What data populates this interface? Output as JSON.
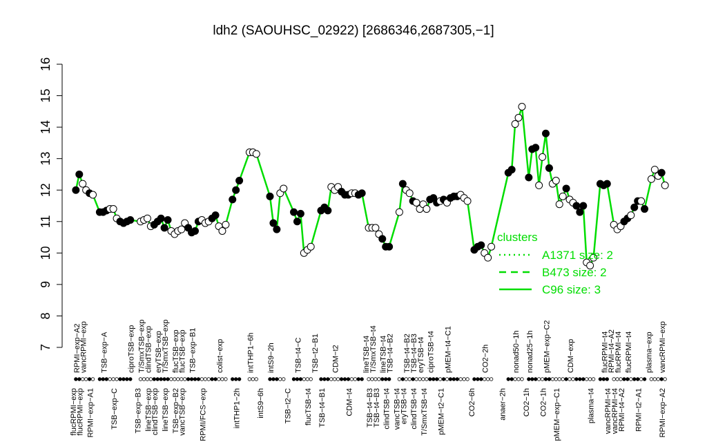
{
  "chart_data": {
    "type": "scatter",
    "title": "ldh2 (SAOUHSC_02922) [2686346,2687305,−1]",
    "xlim": [
      0,
      177
    ],
    "ylim": [
      7,
      16
    ],
    "yticks": [
      7,
      8,
      9,
      10,
      11,
      12,
      13,
      14,
      15,
      16
    ],
    "line_color": "#00dd00",
    "point_fill": "#000000",
    "x": [
      2,
      3,
      4,
      5,
      6,
      7,
      9,
      10,
      11,
      12,
      13,
      14,
      15,
      16,
      17,
      18,
      21,
      22,
      23,
      24,
      25,
      26,
      27,
      28,
      29,
      30,
      31,
      32,
      33,
      34,
      35,
      36,
      37,
      38,
      39,
      40,
      41,
      42,
      43,
      44,
      45,
      46,
      48,
      49,
      50,
      53,
      54,
      55,
      59,
      60,
      61,
      62,
      63,
      66,
      67,
      68,
      69,
      70,
      71,
      74,
      75,
      76,
      77,
      78,
      79,
      80,
      81,
      82,
      83,
      84,
      85,
      86,
      88,
      89,
      90,
      91,
      92,
      93,
      94,
      97,
      98,
      99,
      100,
      101,
      102,
      103,
      104,
      105,
      106,
      107,
      108,
      109,
      110,
      111,
      112,
      113,
      114,
      115,
      116,
      117,
      119,
      120,
      121,
      122,
      123,
      124,
      129,
      130,
      131,
      132,
      133,
      135,
      136,
      137,
      138,
      139,
      140,
      141,
      142,
      143,
      144,
      145,
      146,
      147,
      148,
      149,
      150,
      151,
      152,
      153,
      154,
      156,
      157,
      158,
      160,
      161,
      162,
      163,
      164,
      165,
      166,
      167,
      168,
      169,
      171,
      172,
      173,
      174,
      175
    ],
    "values": [
      12.0,
      12.5,
      12.2,
      12.0,
      11.9,
      11.85,
      11.3,
      11.3,
      11.35,
      11.4,
      11.4,
      11.1,
      11.0,
      10.95,
      11.0,
      11.05,
      11.0,
      11.05,
      11.1,
      10.85,
      10.9,
      11.0,
      11.1,
      10.8,
      11.05,
      10.7,
      10.6,
      10.7,
      10.75,
      10.95,
      10.8,
      10.65,
      10.7,
      11.0,
      11.05,
      10.95,
      11.0,
      11.1,
      11.2,
      10.85,
      10.7,
      10.9,
      11.7,
      12.0,
      12.3,
      13.2,
      13.2,
      13.15,
      11.8,
      10.95,
      10.75,
      11.9,
      12.05,
      11.3,
      11.0,
      11.25,
      10.0,
      10.1,
      10.2,
      11.35,
      11.45,
      11.35,
      12.1,
      12.0,
      12.1,
      11.95,
      11.85,
      11.85,
      11.9,
      11.9,
      11.85,
      11.9,
      10.8,
      10.8,
      10.8,
      10.6,
      10.45,
      10.2,
      10.2,
      11.3,
      12.2,
      12.0,
      11.9,
      11.65,
      11.6,
      11.4,
      11.55,
      11.4,
      11.7,
      11.75,
      11.6,
      11.65,
      11.7,
      11.6,
      11.75,
      11.8,
      11.8,
      11.85,
      11.75,
      11.65,
      10.1,
      10.2,
      10.25,
      10.0,
      9.85,
      10.2,
      12.55,
      12.65,
      14.1,
      14.3,
      14.65,
      12.4,
      13.3,
      13.35,
      12.15,
      13.05,
      13.8,
      12.7,
      12.2,
      12.3,
      11.55,
      11.8,
      12.05,
      11.7,
      11.6,
      11.5,
      11.3,
      11.5,
      9.7,
      9.6,
      9.85,
      12.2,
      12.15,
      12.2,
      10.9,
      10.75,
      10.85,
      11.0,
      11.1,
      11.2,
      11.45,
      11.65,
      11.65,
      11.4,
      12.35,
      12.65,
      12.45,
      12.55,
      12.15
    ],
    "filled": [
      1,
      1,
      0,
      0,
      1,
      0,
      1,
      1,
      1,
      0,
      0,
      0,
      1,
      1,
      1,
      1,
      0,
      0,
      0,
      0,
      1,
      1,
      1,
      1,
      1,
      0,
      0,
      0,
      0,
      0,
      1,
      1,
      1,
      1,
      0,
      0,
      0,
      1,
      1,
      0,
      0,
      0,
      1,
      1,
      1,
      0,
      0,
      0,
      1,
      1,
      1,
      0,
      0,
      1,
      1,
      1,
      0,
      0,
      0,
      1,
      1,
      1,
      0,
      0,
      0,
      1,
      1,
      1,
      0,
      0,
      1,
      1,
      0,
      0,
      0,
      0,
      1,
      1,
      1,
      0,
      1,
      0,
      0,
      1,
      0,
      0,
      0,
      0,
      1,
      1,
      1,
      0,
      1,
      0,
      1,
      1,
      1,
      0,
      0,
      0,
      1,
      1,
      1,
      0,
      0,
      0,
      1,
      1,
      0,
      0,
      0,
      1,
      1,
      1,
      0,
      0,
      1,
      1,
      0,
      0,
      0,
      0,
      1,
      0,
      0,
      1,
      1,
      1,
      0,
      0,
      0,
      1,
      1,
      1,
      0,
      0,
      0,
      1,
      1,
      0,
      1,
      1,
      0,
      1,
      0,
      0,
      0,
      1,
      0
    ],
    "labels_top": [
      {
        "text": "RPMI−exp−A2",
        "x": 3
      },
      {
        "text": "vancRPMI−exp",
        "x": 5
      },
      {
        "text": "TSB−exp−A",
        "x": 11
      },
      {
        "text": "ciproTSB−exp",
        "x": 19
      },
      {
        "text": "T/SmxTSB−exp",
        "x": 22
      },
      {
        "text": "clindTSB−exp",
        "x": 24
      },
      {
        "text": "eryTSB−exp",
        "x": 27
      },
      {
        "text": "T/SmxTSB−exp",
        "x": 29
      },
      {
        "text": "flucTSB−exp",
        "x": 32
      },
      {
        "text": "flucTSB−exp",
        "x": 34
      },
      {
        "text": "TSB−exp−B1",
        "x": 37
      },
      {
        "text": "colist−exp",
        "x": 45
      },
      {
        "text": "intTHP1−6h",
        "x": 54
      },
      {
        "text": "intS9−2h",
        "x": 60
      },
      {
        "text": "TSB−t4−C",
        "x": 68
      },
      {
        "text": "TSB−t2−B1",
        "x": 73
      },
      {
        "text": "CDM−t2",
        "x": 79
      },
      {
        "text": "lineTSB−t4",
        "x": 88
      },
      {
        "text": "T/SmxTSB−t4",
        "x": 90
      },
      {
        "text": "lineTSB−t4",
        "x": 93
      },
      {
        "text": "TSB−t4−B2",
        "x": 95
      },
      {
        "text": "TSB−t4−B2",
        "x": 100
      },
      {
        "text": "TSB−t4−B3",
        "x": 102
      },
      {
        "text": "eryTSB−t4",
        "x": 104
      },
      {
        "text": "ciproTSB−t4",
        "x": 107
      },
      {
        "text": "pMEM−t4−C1",
        "x": 112
      },
      {
        "text": "CO2−2h",
        "x": 123
      },
      {
        "text": "nonad50−1h",
        "x": 132
      },
      {
        "text": "nonad25−1h",
        "x": 136
      },
      {
        "text": "pMEM−exp−C2",
        "x": 141
      },
      {
        "text": "CDM−exp",
        "x": 148
      },
      {
        "text": "flucRPMI−t4",
        "x": 158
      },
      {
        "text": "RPMI−t4−A2",
        "x": 160
      },
      {
        "text": "flucRPMI−t4",
        "x": 162
      },
      {
        "text": "flucRPMI−t4",
        "x": 165
      },
      {
        "text": "plasma−exp",
        "x": 171
      },
      {
        "text": "vancRPMI−exp",
        "x": 175
      }
    ],
    "labels_bottom": [
      {
        "text": "flucRPMI−exp",
        "x": 2
      },
      {
        "text": "flucRPMI−exp",
        "x": 4
      },
      {
        "text": "RPMI−exp−A1",
        "x": 7
      },
      {
        "text": "TSB−exp−C",
        "x": 14
      },
      {
        "text": "TSB−exp−B3",
        "x": 21
      },
      {
        "text": "lineTSB−exp",
        "x": 24
      },
      {
        "text": "clindTSB−exp",
        "x": 26
      },
      {
        "text": "lineTSB−exp",
        "x": 29
      },
      {
        "text": "TSB−exp−B2",
        "x": 32
      },
      {
        "text": "vancTSB−exp",
        "x": 34
      },
      {
        "text": "RPMI/FCS−exp",
        "x": 40
      },
      {
        "text": "intTHP1−2h",
        "x": 50
      },
      {
        "text": "intS9−6h",
        "x": 57
      },
      {
        "text": "TSB−t2−C",
        "x": 65
      },
      {
        "text": "flucTSB−t4",
        "x": 71
      },
      {
        "text": "TSB−t4−B1",
        "x": 75
      },
      {
        "text": "CDM−t4",
        "x": 83
      },
      {
        "text": "TSB−t4−B3",
        "x": 89
      },
      {
        "text": "TSB−t4−B3",
        "x": 91
      },
      {
        "text": "clindTSB−t4",
        "x": 94
      },
      {
        "text": "vancTSB−t4",
        "x": 97
      },
      {
        "text": "eryTSB−t4",
        "x": 99
      },
      {
        "text": "clindTSB−t4",
        "x": 102
      },
      {
        "text": "T/SmxTSB−t4",
        "x": 105
      },
      {
        "text": "pMEM−t2−C1",
        "x": 110
      },
      {
        "text": "CO2−6h",
        "x": 119
      },
      {
        "text": "anaer−2h",
        "x": 128
      },
      {
        "text": "CO2−1h",
        "x": 135
      },
      {
        "text": "CO2−1h",
        "x": 140
      },
      {
        "text": "pMEM−exp−C1",
        "x": 144
      },
      {
        "text": "plasma−t4",
        "x": 154
      },
      {
        "text": "vancRPMI−t4",
        "x": 159
      },
      {
        "text": "vancRPMI−t4",
        "x": 161
      },
      {
        "text": "RPMI−t4−A2",
        "x": 163
      },
      {
        "text": "RPMI−t2−A1",
        "x": 168
      },
      {
        "text": "RPMI−exp−A2",
        "x": 175
      }
    ],
    "legend": {
      "title": "clusters",
      "position": "right",
      "entries": [
        {
          "label": "A1371 size: 2",
          "dash": "2,5"
        },
        {
          "label": "B473 size: 2",
          "dash": "10,7"
        },
        {
          "label": "C96 size: 3",
          "dash": "none"
        }
      ]
    }
  }
}
